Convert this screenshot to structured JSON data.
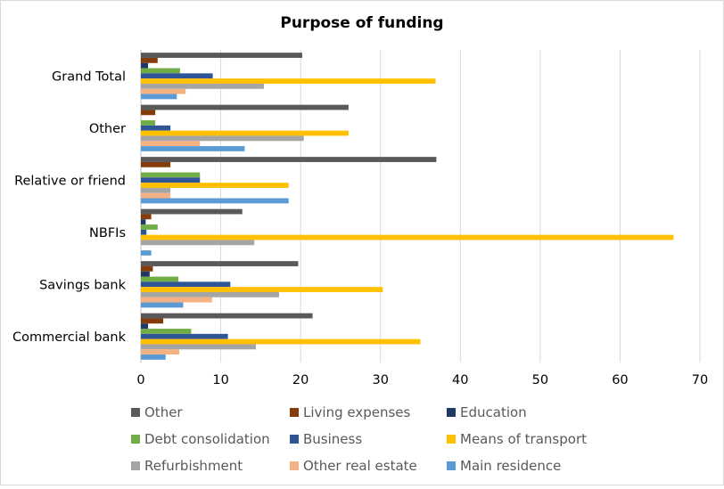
{
  "chart_data": {
    "type": "bar",
    "orientation": "horizontal",
    "title": "Purpose of funding",
    "xlabel": "",
    "ylabel": "",
    "xlim": [
      0,
      70
    ],
    "xticks": [
      "0",
      "10",
      "20",
      "30",
      "40",
      "50",
      "60",
      "70"
    ],
    "grid": true,
    "legend_position": "bottom",
    "categories": [
      "Grand Total",
      "Other",
      "Relative or friend",
      "NBFIs",
      "Savings bank",
      "Commercial bank"
    ],
    "series": [
      {
        "name": "Other",
        "color": "#595959",
        "values": [
          20.2,
          26,
          37,
          12.7,
          19.7,
          21.5
        ]
      },
      {
        "name": "Living expenses",
        "color": "#843c0c",
        "values": [
          2.1,
          1.8,
          3.7,
          1.3,
          1.5,
          2.8
        ]
      },
      {
        "name": "Education",
        "color": "#1f3864",
        "values": [
          0.9,
          0,
          0,
          0.6,
          1.1,
          0.9
        ]
      },
      {
        "name": "Debt consolidation",
        "color": "#70ad47",
        "values": [
          4.9,
          1.8,
          7.4,
          2.1,
          4.7,
          6.3
        ]
      },
      {
        "name": "Business",
        "color": "#2f5597",
        "values": [
          9,
          3.7,
          7.4,
          0.7,
          11.2,
          10.9
        ]
      },
      {
        "name": "Means of transport",
        "color": "#ffc000",
        "values": [
          36.9,
          26,
          18.5,
          66.7,
          30.3,
          35
        ]
      },
      {
        "name": "Refurbishment",
        "color": "#a5a5a5",
        "values": [
          15.4,
          20.4,
          3.7,
          14.2,
          17.3,
          14.4
        ]
      },
      {
        "name": "Other real estate",
        "color": "#f4b183",
        "values": [
          5.6,
          7.4,
          3.7,
          0,
          8.9,
          4.8
        ]
      },
      {
        "name": "Main residence",
        "color": "#5b9bd5",
        "values": [
          4.5,
          13,
          18.5,
          1.3,
          5.3,
          3.1
        ]
      }
    ]
  }
}
